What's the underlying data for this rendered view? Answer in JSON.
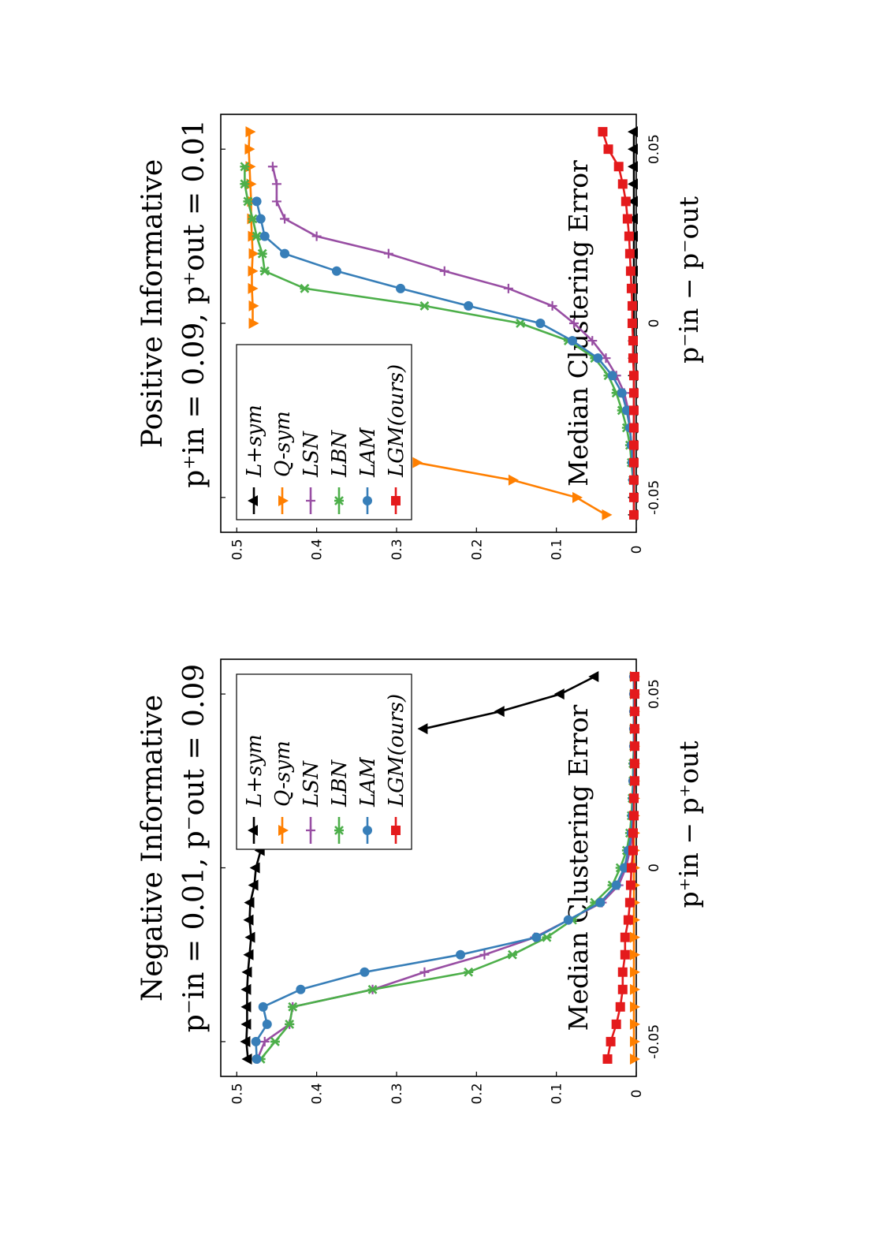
{
  "chart_data": [
    {
      "type": "line",
      "title_line1": "Negative Informative",
      "title_line2": "p⁻in = 0.01, p⁻out = 0.09",
      "xlabel": "p⁺in − p⁺out",
      "ylabel": "Median Clustering Error",
      "xlim": [
        -0.06,
        0.06
      ],
      "ylim": [
        0,
        0.52
      ],
      "xticks": [
        -0.05,
        0,
        0.05
      ],
      "xtick_labels": [
        "-0.05",
        "0",
        "0.05"
      ],
      "yticks": [
        0,
        0.1,
        0.2,
        0.3,
        0.4,
        0.5
      ],
      "ytick_labels": [
        "0",
        "0.1",
        "0.2",
        "0.3",
        "0.4",
        "0.5"
      ],
      "legend_position": "top-right",
      "x": [
        -0.055,
        -0.05,
        -0.045,
        -0.04,
        -0.035,
        -0.03,
        -0.025,
        -0.02,
        -0.015,
        -0.01,
        -0.005,
        0,
        0.005,
        0.01,
        0.015,
        0.02,
        0.025,
        0.03,
        0.035,
        0.04,
        0.045,
        0.05,
        0.055
      ],
      "series": [
        {
          "name": "L+sym",
          "color": "#000000",
          "marker": "triangle-up",
          "values": [
            0.486,
            0.488,
            0.487,
            0.487,
            0.487,
            0.486,
            0.484,
            0.482,
            0.484,
            0.483,
            0.478,
            0.476,
            0.47,
            null,
            null,
            null,
            null,
            null,
            null,
            0.266,
            0.17,
            0.095,
            0.052
          ]
        },
        {
          "name": "Q-sym",
          "color": "#ff7f00",
          "marker": "triangle-down",
          "values": [
            0.003,
            0.003,
            0.003,
            0.003,
            0.003,
            0.003,
            0.003,
            0.003,
            0.003,
            0.003,
            0.003,
            0.003,
            0.003,
            0.003,
            0.003,
            0.003,
            0.003,
            0.003,
            0.003,
            0.003,
            0.003,
            0.003,
            0.003
          ]
        },
        {
          "name": "LSN",
          "color": "#984ea3",
          "marker": "plus",
          "values": [
            0.474,
            0.465,
            0.434,
            0.43,
            0.33,
            0.265,
            0.19,
            0.127,
            0.085,
            0.043,
            0.022,
            0.013,
            0.008,
            0.005,
            0.004,
            0.004,
            0.003,
            0.003,
            0.003,
            0.003,
            0.003,
            0.003,
            0.003
          ]
        },
        {
          "name": "LBN",
          "color": "#4daf4a",
          "marker": "star",
          "values": [
            0.47,
            0.452,
            0.434,
            0.43,
            0.33,
            0.21,
            0.155,
            0.112,
            0.08,
            0.052,
            0.03,
            0.02,
            0.012,
            0.008,
            0.006,
            0.005,
            0.004,
            0.004,
            0.003,
            0.003,
            0.003,
            0.003,
            0.003
          ]
        },
        {
          "name": "LAM",
          "color": "#377eb8",
          "marker": "circle",
          "values": [
            0.475,
            0.476,
            0.462,
            0.467,
            0.42,
            0.34,
            0.22,
            0.125,
            0.085,
            0.045,
            0.025,
            0.015,
            0.01,
            0.006,
            0.005,
            0.004,
            0.004,
            0.003,
            0.003,
            0.003,
            0.003,
            0.003,
            0.003
          ]
        },
        {
          "name": "LGM(ours)",
          "color": "#e41a1c",
          "marker": "square",
          "values": [
            0.036,
            0.032,
            0.025,
            0.02,
            0.017,
            0.017,
            0.014,
            0.014,
            0.01,
            0.008,
            0.007,
            0.006,
            0.004,
            0.004,
            0.003,
            0.003,
            0.002,
            0.002,
            0.002,
            0.002,
            0.002,
            0.002,
            0.002
          ]
        }
      ]
    },
    {
      "type": "line",
      "title_line1": "Positive Informative",
      "title_line2": "p⁺in = 0.09, p⁺out = 0.01",
      "xlabel": "p⁻in − p⁻out",
      "ylabel": "Median Clustering Error",
      "xlim": [
        -0.06,
        0.06
      ],
      "ylim": [
        0,
        0.52
      ],
      "xticks": [
        -0.05,
        0,
        0.05
      ],
      "xtick_labels": [
        "-0.05",
        "0",
        "0.05"
      ],
      "yticks": [
        0,
        0.1,
        0.2,
        0.3,
        0.4,
        0.5
      ],
      "ytick_labels": [
        "0",
        "0.1",
        "0.2",
        "0.3",
        "0.4",
        "0.5"
      ],
      "legend_position": "bottom-left",
      "x": [
        -0.055,
        -0.05,
        -0.045,
        -0.04,
        -0.035,
        -0.03,
        -0.025,
        -0.02,
        -0.015,
        -0.01,
        -0.005,
        0,
        0.005,
        0.01,
        0.015,
        0.02,
        0.025,
        0.03,
        0.035,
        0.04,
        0.045,
        0.05,
        0.055
      ],
      "series": [
        {
          "name": "L+sym",
          "color": "#000000",
          "marker": "triangle-up",
          "values": [
            0.003,
            0.003,
            0.003,
            0.003,
            0.003,
            0.003,
            0.003,
            0.003,
            0.003,
            0.003,
            0.003,
            0.003,
            0.003,
            0.003,
            0.003,
            0.003,
            0.003,
            0.003,
            0.003,
            0.003,
            0.003,
            0.003,
            0.003
          ]
        },
        {
          "name": "Q-sym",
          "color": "#ff7f00",
          "marker": "triangle-down",
          "values": [
            0.038,
            0.075,
            0.155,
            0.275,
            null,
            null,
            null,
            null,
            null,
            null,
            null,
            0.48,
            0.48,
            0.481,
            0.481,
            0.48,
            0.481,
            0.482,
            0.482,
            0.483,
            0.484,
            0.485,
            0.484
          ]
        },
        {
          "name": "LSN",
          "color": "#984ea3",
          "marker": "plus",
          "values": [
            0.003,
            0.003,
            0.004,
            0.005,
            0.006,
            0.008,
            0.01,
            0.015,
            0.025,
            0.038,
            0.055,
            0.078,
            0.105,
            0.16,
            0.24,
            0.31,
            0.4,
            0.44,
            0.45,
            0.45,
            0.455,
            null,
            null
          ]
        },
        {
          "name": "LBN",
          "color": "#4daf4a",
          "marker": "star",
          "values": [
            0.003,
            0.003,
            0.004,
            0.006,
            0.008,
            0.012,
            0.018,
            0.025,
            0.035,
            0.052,
            0.085,
            0.145,
            0.265,
            0.415,
            0.465,
            0.468,
            0.475,
            0.48,
            0.486,
            0.49,
            0.49,
            null,
            null
          ]
        },
        {
          "name": "LAM",
          "color": "#377eb8",
          "marker": "circle",
          "values": [
            0.003,
            0.003,
            0.004,
            0.005,
            0.006,
            0.008,
            0.012,
            0.018,
            0.03,
            0.048,
            0.08,
            0.12,
            0.21,
            0.295,
            0.375,
            0.44,
            0.465,
            0.47,
            0.475,
            null,
            null,
            null,
            null
          ]
        },
        {
          "name": "LGM(ours)",
          "color": "#e41a1c",
          "marker": "square",
          "values": [
            0.003,
            0.003,
            0.003,
            0.003,
            0.003,
            0.003,
            0.003,
            0.003,
            0.003,
            0.004,
            0.004,
            0.005,
            0.005,
            0.006,
            0.007,
            0.008,
            0.009,
            0.011,
            0.013,
            0.017,
            0.022,
            0.035,
            0.042
          ]
        }
      ]
    }
  ]
}
